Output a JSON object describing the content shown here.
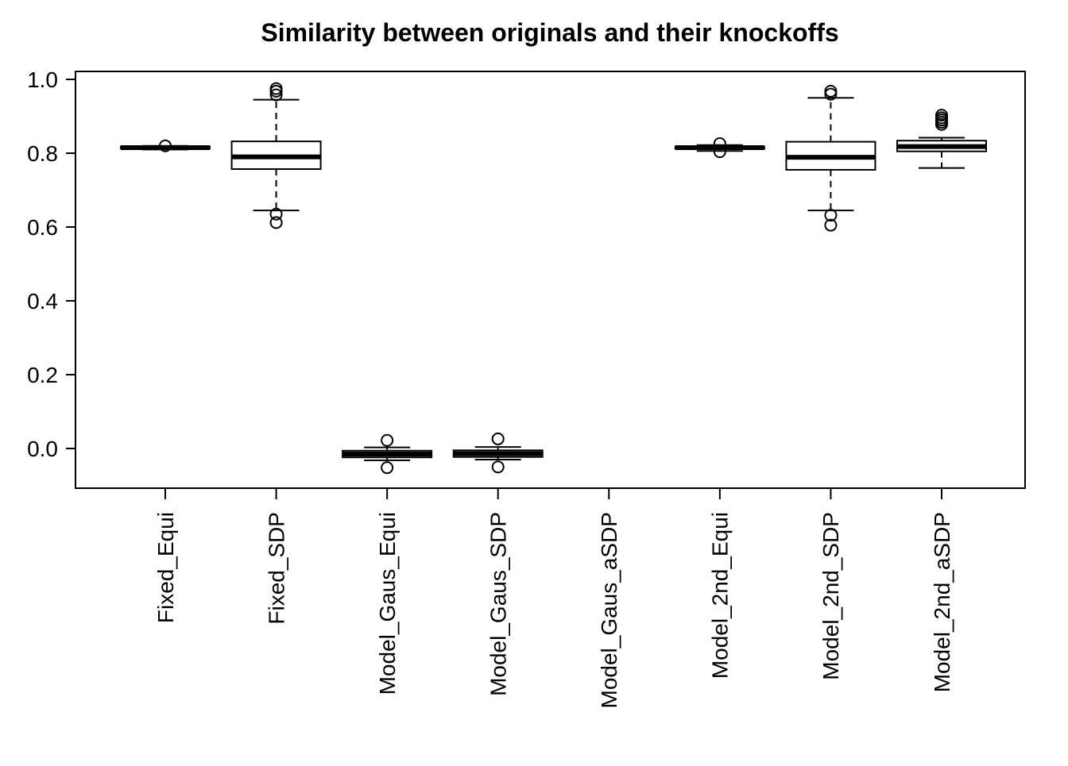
{
  "title": "Similarity between originals and their knockoffs",
  "chart_data": {
    "type": "boxplot",
    "title": "Similarity between originals and their knockoffs",
    "xlabel": "",
    "ylabel": "",
    "ylim": [
      -0.08,
      1.02
    ],
    "yticks": [
      0.0,
      0.2,
      0.4,
      0.6,
      0.8,
      1.0
    ],
    "ytick_labels": [
      "0.0",
      "0.2",
      "0.4",
      "0.6",
      "0.8",
      "1.0"
    ],
    "grid": false,
    "legend": null,
    "categories": [
      "Fixed_Equi",
      "Fixed_SDP",
      "Model_Gaus_Equi",
      "Model_Gaus_SDP",
      "Model_Gaus_aSDP",
      "Model_2nd_Equi",
      "Model_2nd_SDP",
      "Model_2nd_aSDP"
    ],
    "boxes": [
      {
        "category": "Fixed_Equi",
        "whisker_low": 0.81,
        "q1": 0.813,
        "median": 0.815,
        "q3": 0.818,
        "whisker_high": 0.82,
        "outliers": [
          0.82
        ]
      },
      {
        "category": "Fixed_SDP",
        "whisker_low": 0.645,
        "q1": 0.757,
        "median": 0.79,
        "q3": 0.832,
        "whisker_high": 0.945,
        "outliers": [
          0.975,
          0.968,
          0.958,
          0.635,
          0.612
        ]
      },
      {
        "category": "Model_Gaus_Equi",
        "whisker_low": -0.032,
        "q1": -0.024,
        "median": -0.015,
        "q3": -0.006,
        "whisker_high": 0.003,
        "outliers": [
          0.022,
          -0.052
        ]
      },
      {
        "category": "Model_Gaus_SDP",
        "whisker_low": -0.03,
        "q1": -0.023,
        "median": -0.014,
        "q3": -0.005,
        "whisker_high": 0.004,
        "outliers": [
          0.026,
          -0.05
        ]
      },
      {
        "category": "Model_Gaus_aSDP",
        "whisker_low": null,
        "q1": null,
        "median": null,
        "q3": null,
        "whisker_high": null,
        "outliers": []
      },
      {
        "category": "Model_2nd_Equi",
        "whisker_low": 0.806,
        "q1": 0.812,
        "median": 0.815,
        "q3": 0.818,
        "whisker_high": 0.822,
        "outliers": [
          0.826,
          0.804
        ]
      },
      {
        "category": "Model_2nd_SDP",
        "whisker_low": 0.645,
        "q1": 0.755,
        "median": 0.789,
        "q3": 0.831,
        "whisker_high": 0.95,
        "outliers": [
          0.968,
          0.96,
          0.632,
          0.605
        ]
      },
      {
        "category": "Model_2nd_aSDP",
        "whisker_low": 0.76,
        "q1": 0.805,
        "median": 0.818,
        "q3": 0.834,
        "whisker_high": 0.842,
        "outliers": [
          0.903,
          0.896,
          0.89,
          0.884,
          0.878
        ]
      }
    ],
    "colors": {
      "stroke": "#000000",
      "box_fill": "#ffffff",
      "background": "#ffffff"
    }
  }
}
